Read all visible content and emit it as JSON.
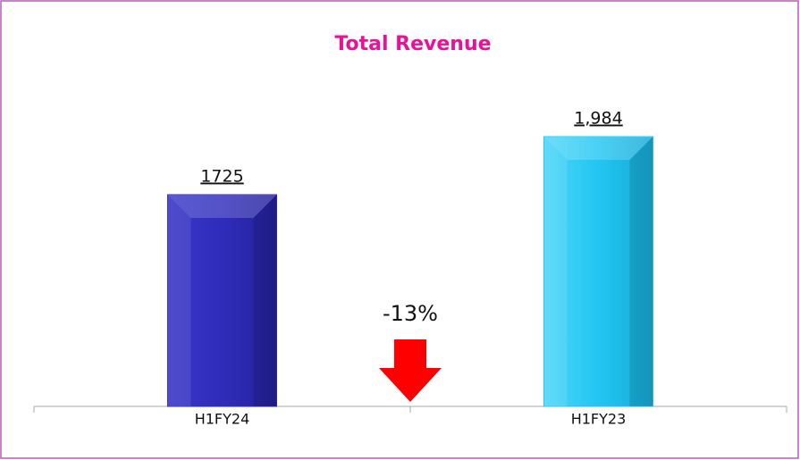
{
  "chart_data": {
    "type": "bar",
    "title": "Total Revenue",
    "categories": [
      "H1FY24",
      "H1FY23"
    ],
    "values": [
      1725,
      1984
    ],
    "value_labels": [
      "1725",
      "1,984"
    ],
    "colors": [
      "#2f2cba",
      "#22c6f2"
    ],
    "annotation": "-13%",
    "ylim": [
      780,
      2275
    ]
  }
}
